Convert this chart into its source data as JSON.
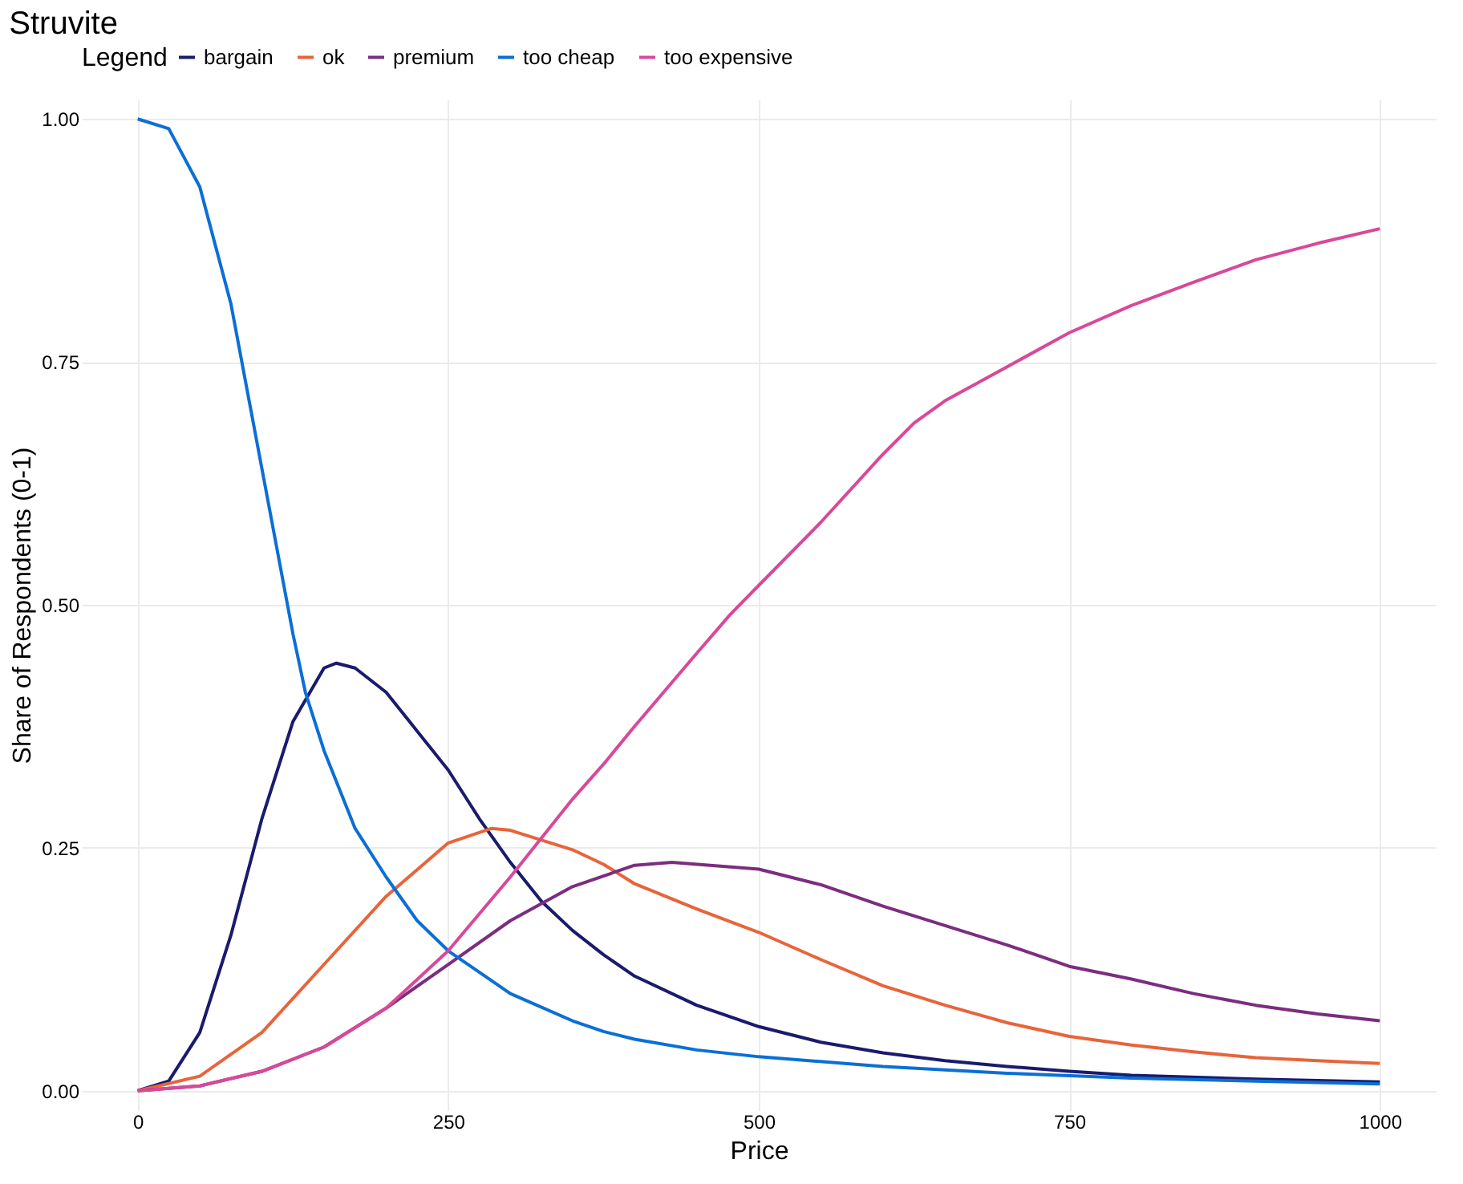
{
  "chart_data": {
    "type": "line",
    "title": "Struvite",
    "xlabel": "Price",
    "ylabel": "Share of Respondents (0-1)",
    "legend_title": "Legend",
    "legend": "top",
    "grid": true,
    "xlim": [
      -45,
      1045
    ],
    "ylim": [
      -0.02,
      1.02
    ],
    "xticks": [
      0,
      250,
      500,
      750,
      1000
    ],
    "yticks": [
      {
        "value": 0,
        "label": "0.00"
      },
      {
        "value": 0.25,
        "label": "0.25"
      },
      {
        "value": 0.5,
        "label": "0.50"
      },
      {
        "value": 0.75,
        "label": "0.75"
      },
      {
        "value": 1,
        "label": "1.00"
      }
    ],
    "series": [
      {
        "name": "bargain",
        "color": "#1a1a6e",
        "x": [
          0,
          25,
          50,
          75,
          100,
          125,
          150,
          160,
          175,
          200,
          225,
          250,
          275,
          300,
          325,
          350,
          375,
          400,
          450,
          500,
          550,
          600,
          650,
          700,
          750,
          800,
          900,
          1000
        ],
        "values": [
          0,
          0.01,
          0.06,
          0.16,
          0.28,
          0.38,
          0.435,
          0.44,
          0.435,
          0.41,
          0.37,
          0.33,
          0.28,
          0.235,
          0.195,
          0.165,
          0.14,
          0.118,
          0.088,
          0.066,
          0.05,
          0.039,
          0.031,
          0.025,
          0.02,
          0.016,
          0.012,
          0.009
        ]
      },
      {
        "name": "ok",
        "color": "#e8643a",
        "x": [
          0,
          50,
          100,
          150,
          200,
          250,
          285,
          300,
          350,
          375,
          400,
          450,
          500,
          550,
          600,
          650,
          700,
          750,
          800,
          850,
          900,
          950,
          1000
        ],
        "values": [
          0,
          0.015,
          0.06,
          0.13,
          0.2,
          0.255,
          0.27,
          0.268,
          0.248,
          0.233,
          0.213,
          0.187,
          0.163,
          0.135,
          0.108,
          0.088,
          0.07,
          0.056,
          0.047,
          0.04,
          0.034,
          0.031,
          0.028
        ]
      },
      {
        "name": "premium",
        "color": "#7b2d7f",
        "x": [
          0,
          50,
          100,
          150,
          200,
          250,
          300,
          350,
          400,
          430,
          500,
          550,
          600,
          650,
          700,
          750,
          800,
          850,
          900,
          950,
          1000
        ],
        "values": [
          0,
          0.005,
          0.02,
          0.045,
          0.085,
          0.13,
          0.175,
          0.21,
          0.232,
          0.235,
          0.228,
          0.212,
          0.19,
          0.17,
          0.15,
          0.128,
          0.115,
          0.1,
          0.088,
          0.079,
          0.072
        ]
      },
      {
        "name": "too cheap",
        "color": "#0a6fd6",
        "x": [
          0,
          25,
          50,
          75,
          100,
          125,
          135,
          150,
          175,
          200,
          225,
          250,
          300,
          350,
          375,
          400,
          450,
          500,
          600,
          700,
          800,
          900,
          1000
        ],
        "values": [
          1.0,
          0.99,
          0.93,
          0.81,
          0.64,
          0.47,
          0.41,
          0.35,
          0.27,
          0.22,
          0.175,
          0.144,
          0.1,
          0.072,
          0.061,
          0.053,
          0.042,
          0.035,
          0.025,
          0.018,
          0.013,
          0.01,
          0.007
        ]
      },
      {
        "name": "too expensive",
        "color": "#d9489a",
        "x": [
          0,
          50,
          100,
          150,
          200,
          250,
          300,
          350,
          375,
          400,
          450,
          477,
          500,
          550,
          600,
          625,
          650,
          700,
          750,
          800,
          850,
          900,
          950,
          1000
        ],
        "values": [
          0,
          0.005,
          0.02,
          0.045,
          0.085,
          0.144,
          0.22,
          0.3,
          0.336,
          0.375,
          0.45,
          0.49,
          0.52,
          0.585,
          0.655,
          0.687,
          0.71,
          0.745,
          0.78,
          0.808,
          0.832,
          0.855,
          0.872,
          0.887
        ]
      }
    ]
  }
}
